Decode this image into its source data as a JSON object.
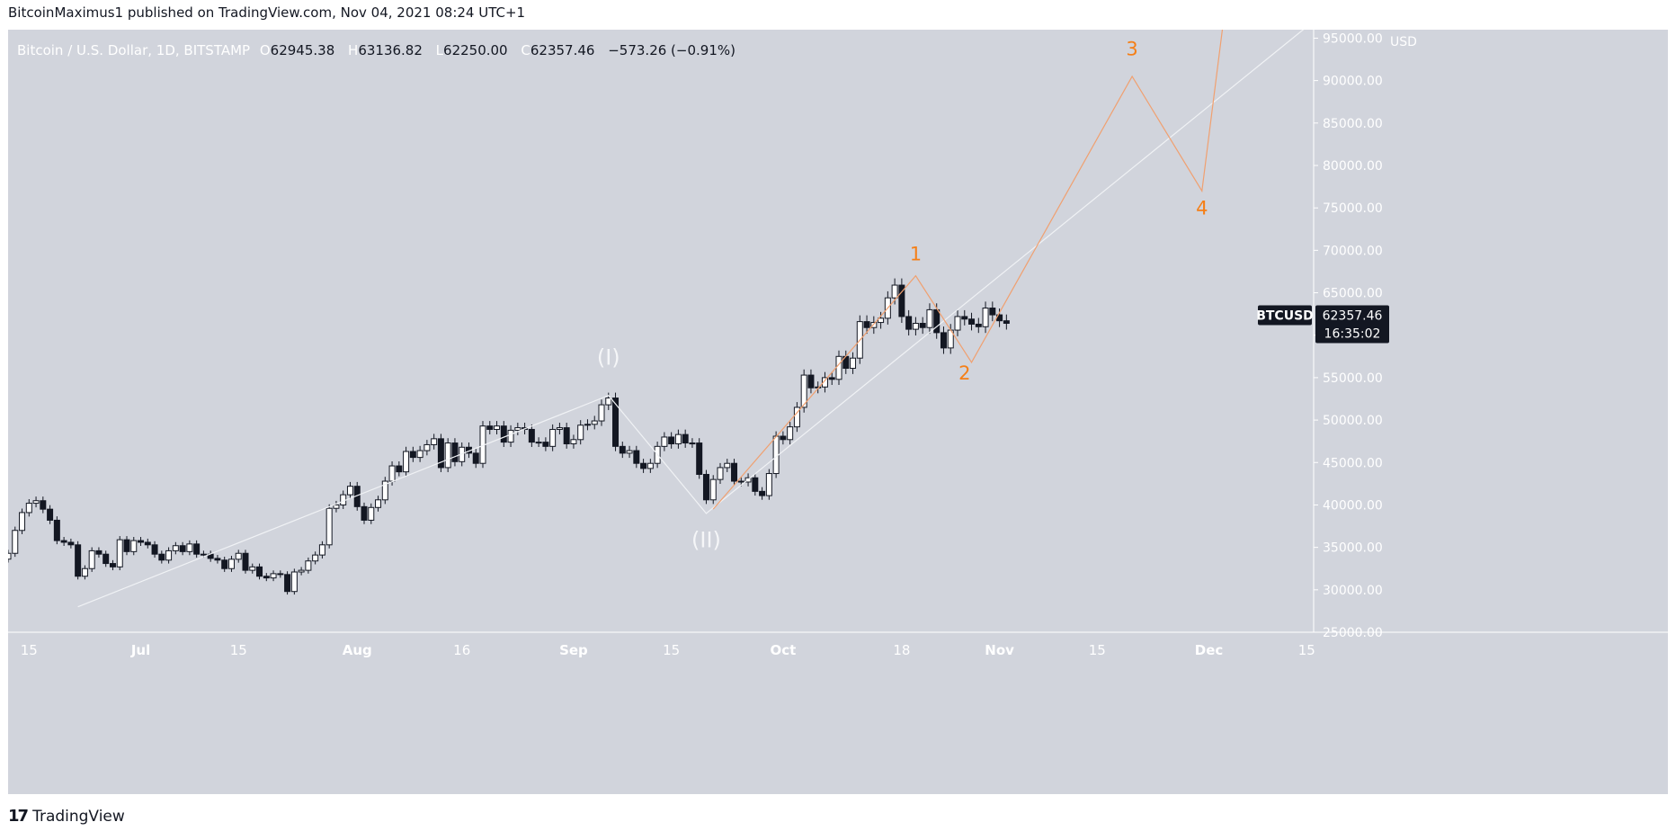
{
  "caption": "BitcoinMaximus1 published on TradingView.com, Nov 04, 2021 08:24 UTC+1",
  "legend": {
    "symbol": "Bitcoin / U.S. Dollar, 1D, BITSTAMP",
    "o_label": "O",
    "o": "62945.38",
    "h_label": "H",
    "h": "63136.82",
    "l_label": "L",
    "l": "62250.00",
    "c_label": "C",
    "c": "62357.46",
    "change": "−573.26 (−0.91%)"
  },
  "price_tag": {
    "ticker": "BTCUSD",
    "price": "62357.46",
    "countdown": "16:35:02"
  },
  "currency": "USD",
  "footer": {
    "logo": "17",
    "brand": "TradingView"
  },
  "colors": {
    "background": "#d1d4dc",
    "candle_up": "#ffffff",
    "candle_down": "#131722",
    "wave_white": "#f0f2f5",
    "wave_orange": "#f57f17",
    "wave_orange_line": "#f0a070"
  },
  "chart_data": {
    "type": "candlestick",
    "title": "Bitcoin / U.S. Dollar, 1D, BITSTAMP",
    "y_unit": "USD",
    "ylim": [
      25000,
      96000
    ],
    "xlim": [
      "2021-06-12",
      "2021-12-16"
    ],
    "y_ticks": [
      "95000.00",
      "90000.00",
      "85000.00",
      "80000.00",
      "75000.00",
      "70000.00",
      "65000.00",
      "60000.00",
      "55000.00",
      "50000.00",
      "45000.00",
      "40000.00",
      "35000.00",
      "30000.00",
      "25000.00"
    ],
    "y_tick_values": [
      95000,
      90000,
      85000,
      80000,
      75000,
      70000,
      65000,
      60000,
      55000,
      50000,
      45000,
      40000,
      35000,
      30000,
      25000
    ],
    "x_ticks": [
      {
        "date": "2021-06-15",
        "label": "15"
      },
      {
        "date": "2021-07-01",
        "label": "Jul"
      },
      {
        "date": "2021-07-15",
        "label": "15"
      },
      {
        "date": "2021-08-01",
        "label": "Aug"
      },
      {
        "date": "2021-08-16",
        "label": "16"
      },
      {
        "date": "2021-09-01",
        "label": "Sep"
      },
      {
        "date": "2021-09-15",
        "label": "15"
      },
      {
        "date": "2021-10-01",
        "label": "Oct"
      },
      {
        "date": "2021-10-18",
        "label": "18"
      },
      {
        "date": "2021-11-01",
        "label": "Nov"
      },
      {
        "date": "2021-11-15",
        "label": "15"
      },
      {
        "date": "2021-12-01",
        "label": "Dec"
      },
      {
        "date": "2021-12-15",
        "label": "15"
      }
    ],
    "closes_start_date": "2021-06-12",
    "closes": [
      34300,
      37000,
      39100,
      40200,
      40500,
      39500,
      38200,
      35800,
      35600,
      35300,
      31600,
      32500,
      34600,
      34200,
      33100,
      32700,
      35900,
      34500,
      35800,
      35600,
      35300,
      34200,
      33500,
      34600,
      35200,
      34500,
      35400,
      34200,
      34200,
      33700,
      33500,
      32500,
      33600,
      34300,
      32300,
      32700,
      31600,
      31400,
      31900,
      31800,
      29800,
      32100,
      32300,
      33400,
      34100,
      35300,
      39600,
      40000,
      41200,
      42200,
      39800,
      38200,
      39700,
      40600,
      42800,
      44600,
      43900,
      46300,
      45600,
      46400,
      47100,
      47800,
      44400,
      47300,
      45100,
      46800,
      46100,
      44900,
      49300,
      48900,
      49300,
      47400,
      48800,
      49100,
      48900,
      47400,
      47400,
      46900,
      48900,
      49100,
      47200,
      47700,
      49400,
      49500,
      49900,
      51800,
      52600,
      46900,
      46100,
      46400,
      44900,
      44300,
      44900,
      46900,
      48000,
      47200,
      48300,
      47300,
      47300,
      43600,
      40600,
      43000,
      44400,
      44900,
      42800,
      42700,
      43200,
      41600,
      41100,
      43700,
      48100,
      47700,
      49200,
      51500,
      55300,
      53800,
      53900,
      55000,
      54800,
      57500,
      56100,
      57300,
      61600,
      60900,
      61500,
      62000,
      64400,
      65900,
      62200,
      60700,
      61400,
      60900,
      63000,
      60300,
      58500,
      60600,
      62200,
      61900,
      61300,
      61000,
      63200,
      62400,
      61700,
      61400
    ],
    "annotations": [
      {
        "label": "(I)",
        "date": "2021-09-06",
        "price": 56500,
        "color": "white"
      },
      {
        "label": "(II)",
        "date": "2021-09-20",
        "price": 35000,
        "color": "white"
      },
      {
        "label": "1",
        "date": "2021-10-20",
        "price": 68800,
        "color": "orange"
      },
      {
        "label": "2",
        "date": "2021-10-27",
        "price": 54800,
        "color": "orange"
      },
      {
        "label": "3",
        "date": "2021-11-20",
        "price": 93000,
        "color": "orange"
      },
      {
        "label": "4",
        "date": "2021-11-30",
        "price": 74200,
        "color": "orange"
      }
    ],
    "white_wave": [
      {
        "date": "2021-06-22",
        "price": 28000
      },
      {
        "date": "2021-09-06",
        "price": 52900
      },
      {
        "date": "2021-09-20",
        "price": 39000
      },
      {
        "date": "2021-12-16",
        "price": 97000
      }
    ],
    "orange_wave": [
      {
        "date": "2021-09-21",
        "price": 39500
      },
      {
        "date": "2021-10-20",
        "price": 67000
      },
      {
        "date": "2021-10-28",
        "price": 56800
      },
      {
        "date": "2021-11-20",
        "price": 90500
      },
      {
        "date": "2021-11-30",
        "price": 77000
      },
      {
        "date": "2021-12-03",
        "price": 96500
      }
    ]
  }
}
